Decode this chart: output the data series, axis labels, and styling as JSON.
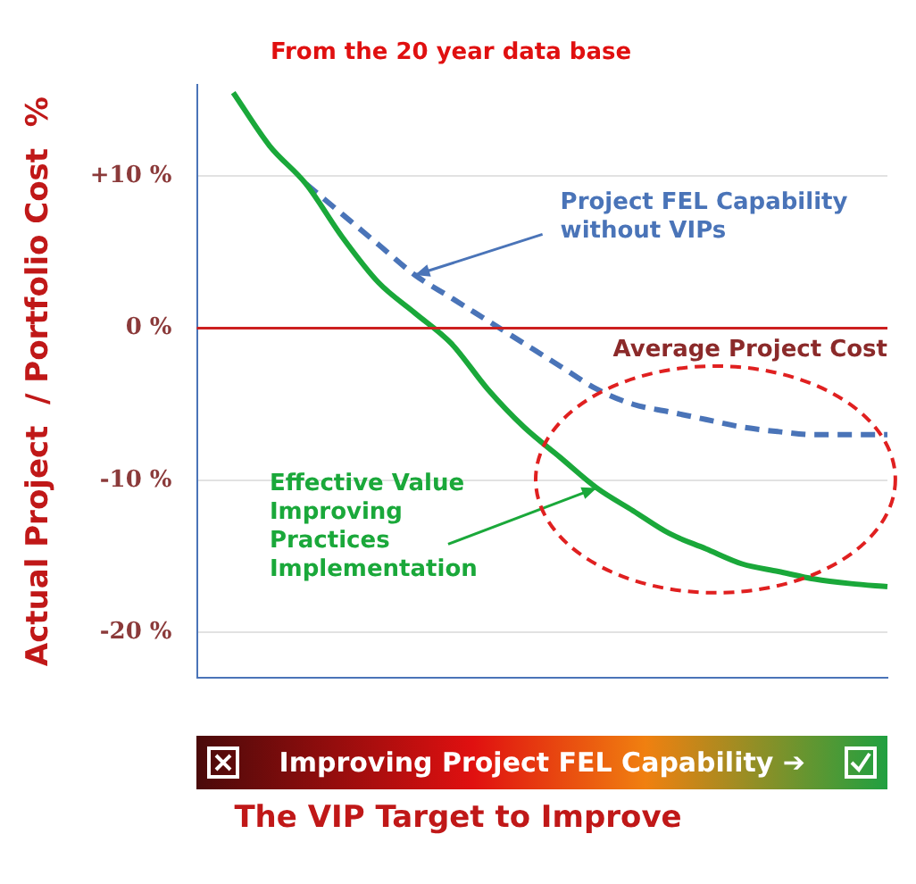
{
  "chart_data": {
    "type": "line",
    "title": "From the 20 year data base",
    "ylabel": "Actual Project  / Portfolio Cost  %",
    "xlabel": "Improving Project FEL Capability ➔",
    "categories": [
      null,
      null,
      null,
      null,
      null,
      null,
      null,
      null,
      null,
      null,
      null,
      null,
      null,
      null,
      null,
      null,
      null,
      null,
      null,
      null
    ],
    "series": [
      {
        "name": "Effective Value Improving Practices Implementation",
        "color": "#1aa83a",
        "line_style": "solid",
        "values": [
          null,
          15.5,
          12,
          9.5,
          6,
          3,
          1,
          -1,
          -4,
          -6.5,
          -8.5,
          -10.5,
          -12,
          -13.5,
          -14.5,
          -15.5,
          -16,
          -16.5,
          -16.8,
          -17
        ]
      },
      {
        "name": "Project FEL Capability without VIPs",
        "color": "#4a74b8",
        "line_style": "dashed",
        "values": [
          null,
          null,
          null,
          9.5,
          7.5,
          5.5,
          3.5,
          2,
          0.5,
          -1,
          -2.5,
          -4,
          -5,
          -5.5,
          -6,
          -6.5,
          -6.8,
          -7,
          -7,
          -7
        ]
      }
    ],
    "ylim": [
      -23,
      16
    ],
    "yticks": [
      {
        "value": 10,
        "label": "+10 %"
      },
      {
        "value": 0,
        "label": "0 %"
      },
      {
        "value": -10,
        "label": "-10 %"
      },
      {
        "value": -20,
        "label": "-20 %"
      }
    ],
    "grid": "y",
    "marker": "none",
    "ref_lines": [
      {
        "axis": "y",
        "value": 0,
        "label": "Average Project Cost",
        "color": "#cc1f1f"
      }
    ],
    "annotations": [
      "The VIP Target to Improve"
    ]
  }
}
